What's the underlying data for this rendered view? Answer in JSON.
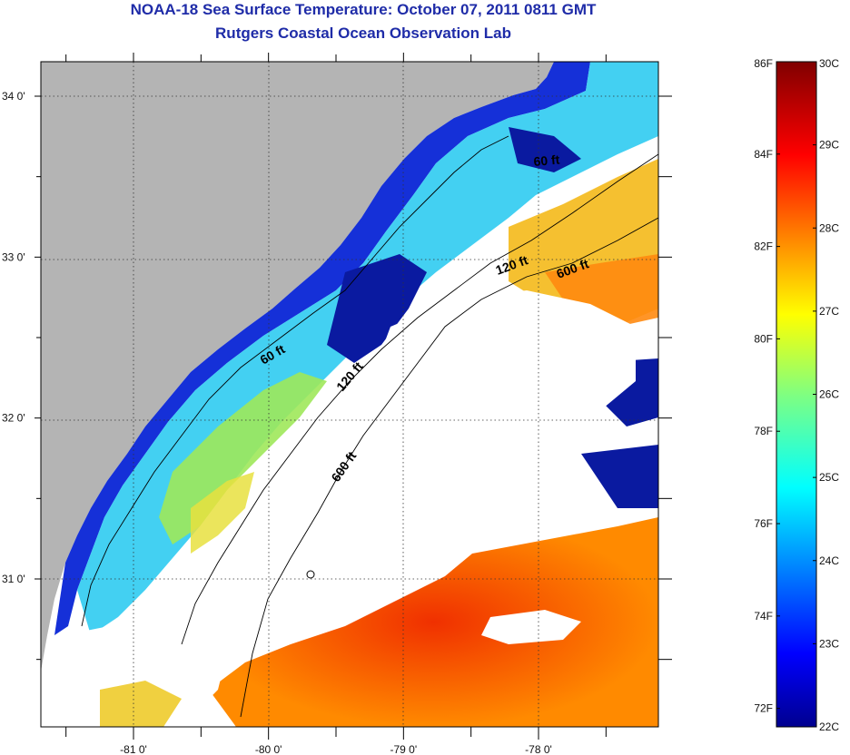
{
  "header": {
    "title": "NOAA-18 Sea Surface Temperature:  October 07, 2011 0811 GMT",
    "subtitle": "Rutgers Coastal Ocean Observation Lab"
  },
  "map": {
    "lat_ticks": [
      {
        "label": "34 0'",
        "value": 34.0
      },
      {
        "label": "33 0'",
        "value": 33.0
      },
      {
        "label": "32 0'",
        "value": 32.0
      },
      {
        "label": "31 0'",
        "value": 31.0
      }
    ],
    "lon_ticks": [
      {
        "label": "-81 0'",
        "value": -81.0
      },
      {
        "label": "-80 0'",
        "value": -80.0
      },
      {
        "label": "-79 0'",
        "value": -79.0
      },
      {
        "label": "-78 0'",
        "value": -78.0
      }
    ],
    "contour_labels": [
      "60 ft",
      "60 ft",
      "120 ft",
      "120 ft",
      "600 ft",
      "600 ft"
    ],
    "colors": {
      "land": "#b4b4b4",
      "cloud": "#ffffff"
    }
  },
  "colorbar": {
    "fahrenheit_labels": [
      "86F",
      "84F",
      "82F",
      "80F",
      "78F",
      "76F",
      "74F",
      "72F"
    ],
    "celsius_labels": [
      "30C",
      "29C",
      "28C",
      "27C",
      "26C",
      "25C",
      "24C",
      "23C",
      "22C"
    ],
    "colormap": "jet"
  }
}
